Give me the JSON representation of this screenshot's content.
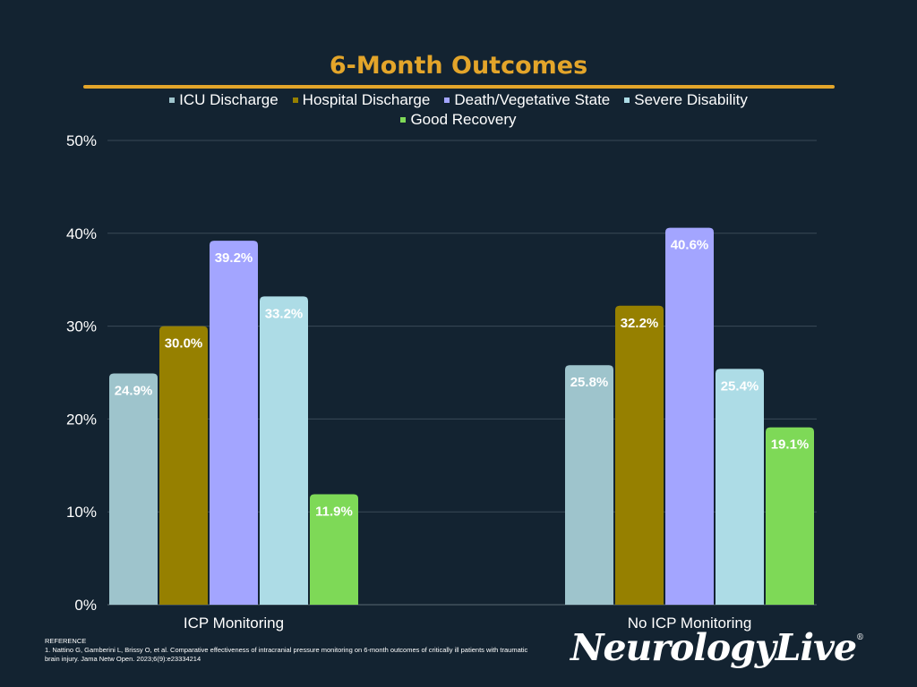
{
  "chart_data": {
    "type": "bar",
    "title": "6-Month Outcomes",
    "categories": [
      "ICP Monitoring",
      "No ICP Monitoring"
    ],
    "series": [
      {
        "name": "ICU Discharge",
        "color": "#9EC4CC",
        "values": [
          24.9,
          25.8
        ],
        "labels": [
          "24.9%",
          "25.8%"
        ]
      },
      {
        "name": "Hospital Discharge",
        "color": "#968000",
        "values": [
          30.0,
          32.2
        ],
        "labels": [
          "30.0%",
          "32.2%"
        ]
      },
      {
        "name": "Death/Vegetative State",
        "color": "#A3A5FF",
        "values": [
          39.2,
          40.6
        ],
        "labels": [
          "39.2%",
          "40.6%"
        ]
      },
      {
        "name": "Severe Disability",
        "color": "#ADDCE6",
        "values": [
          33.2,
          25.4
        ],
        "labels": [
          "33.2%",
          "25.4%"
        ]
      },
      {
        "name": "Good Recovery",
        "color": "#7ED957",
        "values": [
          11.9,
          19.1
        ],
        "labels": [
          "11.9%",
          "19.1%"
        ]
      }
    ],
    "yticks": [
      0,
      10,
      20,
      30,
      40,
      50
    ],
    "ytick_labels": [
      "0%",
      "10%",
      "20%",
      "30%",
      "40%",
      "50%"
    ],
    "ylim": [
      0,
      50
    ],
    "xlabel": "",
    "ylabel": "",
    "grid": true,
    "legend_position": "top"
  },
  "reference": {
    "heading": "REFERENCE",
    "text": "1. Nattino G, Gamberini L, Brissy O, et al. Comparative effectiveness of intracranial pressure monitoring on 6-month outcomes of critically ill patients with traumatic brain injury. Jama Netw Open. 2023;6(9):e23334214"
  },
  "logo": {
    "text": "NeurologyLive",
    "mark": "®"
  },
  "colors": {
    "background": "#132331",
    "accent": "#E3A52A",
    "grid": "#3A4A57",
    "text": "#FFFFFF"
  }
}
